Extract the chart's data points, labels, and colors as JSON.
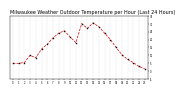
{
  "title": "Milwaukee Weather Outdoor Temperature per Hour (Last 24 Hours)",
  "hours": [
    0,
    1,
    2,
    3,
    4,
    5,
    6,
    7,
    8,
    9,
    10,
    11,
    12,
    13,
    14,
    15,
    16,
    17,
    18,
    19,
    20,
    21,
    22,
    23
  ],
  "temps": [
    5.0,
    5.0,
    5.5,
    10.0,
    8.5,
    14.0,
    17.0,
    21.0,
    24.0,
    25.5,
    21.5,
    18.0,
    30.0,
    27.0,
    30.5,
    28.0,
    24.0,
    20.0,
    15.0,
    10.5,
    7.5,
    5.5,
    3.0,
    1.5
  ],
  "line_color": "#dd0000",
  "marker_color": "#111111",
  "bg_color": "#ffffff",
  "grid_color": "#999999",
  "ylim": [
    -5,
    35
  ],
  "yticks": [
    -5,
    0,
    5,
    10,
    15,
    20,
    25,
    30,
    35
  ],
  "title_fontsize": 3.5
}
